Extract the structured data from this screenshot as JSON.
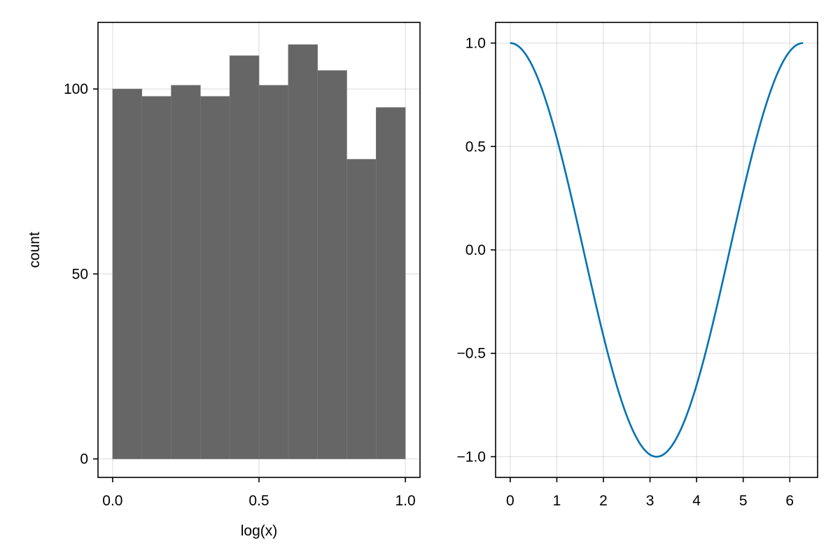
{
  "chart_data": [
    {
      "type": "bar",
      "subtype": "histogram",
      "xlabel": "log(x)",
      "ylabel": "count",
      "bin_edges": [
        0.0,
        0.1,
        0.2,
        0.3,
        0.4,
        0.5,
        0.6,
        0.7,
        0.8,
        0.9,
        1.0
      ],
      "values": [
        100,
        98,
        101,
        98,
        109,
        101,
        112,
        105,
        81,
        95
      ],
      "xlim": [
        -0.05,
        1.05
      ],
      "ylim": [
        -5,
        118
      ],
      "xticks": [
        0.0,
        0.5,
        1.0
      ],
      "xtick_labels": [
        "0.0",
        "0.5",
        "1.0"
      ],
      "yticks": [
        0,
        50,
        100
      ],
      "ytick_labels": [
        "0",
        "50",
        "100"
      ],
      "bar_color": "#666666",
      "grid": true
    },
    {
      "type": "line",
      "xlabel": "",
      "ylabel": "",
      "function": "cos(x)",
      "x_range": [
        0,
        6.2832
      ],
      "xlim": [
        -0.314,
        6.597
      ],
      "ylim": [
        -1.1,
        1.1
      ],
      "xticks": [
        0,
        1,
        2,
        3,
        4,
        5,
        6
      ],
      "xtick_labels": [
        "0",
        "1",
        "2",
        "3",
        "4",
        "5",
        "6"
      ],
      "yticks": [
        -1.0,
        -0.5,
        0.0,
        0.5,
        1.0
      ],
      "ytick_labels": [
        "−1.0",
        "−0.5",
        "0.0",
        "0.5",
        "1.0"
      ],
      "line_color": "#0072B2",
      "grid": true
    }
  ]
}
